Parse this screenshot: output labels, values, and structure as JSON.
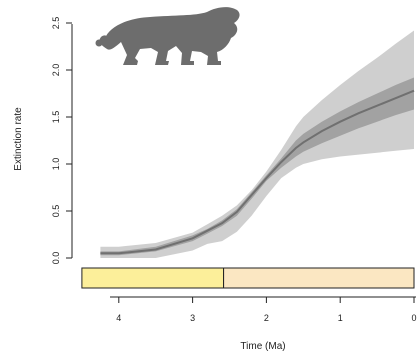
{
  "chart_data": {
    "type": "area",
    "title": "",
    "xlabel": "Time (Ma)",
    "ylabel": "Extinction rate",
    "xlim": [
      4.5,
      0
    ],
    "ylim": [
      0,
      2.5
    ],
    "x_ticks": [
      4,
      3,
      2,
      1,
      0
    ],
    "x_tick_labels": [
      "4",
      "3",
      "2",
      "1",
      "0"
    ],
    "y_ticks": [
      0,
      0.5,
      1,
      1.5,
      2,
      2.5
    ],
    "y_tick_labels": [
      "0.0",
      "0.5",
      "1.0",
      "1.5",
      "2.0",
      "2.5"
    ],
    "grid": false,
    "x": [
      4.25,
      4.0,
      3.5,
      3.0,
      2.8,
      2.6,
      2.4,
      2.2,
      2.0,
      1.8,
      1.6,
      1.5,
      1.25,
      1.0,
      0.75,
      0.5,
      0.25,
      0.0
    ],
    "series": [
      {
        "role": "outer_band_upper",
        "values": [
          0.12,
          0.12,
          0.16,
          0.27,
          0.36,
          0.45,
          0.56,
          0.72,
          0.92,
          1.15,
          1.4,
          1.5,
          1.68,
          1.84,
          1.99,
          2.13,
          2.28,
          2.42
        ]
      },
      {
        "role": "outer_band_lower",
        "values": [
          0.0,
          0.0,
          0.0,
          0.08,
          0.15,
          0.18,
          0.28,
          0.45,
          0.66,
          0.85,
          0.96,
          1.0,
          1.05,
          1.08,
          1.1,
          1.12,
          1.14,
          1.16
        ]
      },
      {
        "role": "inner_band_upper",
        "values": [
          0.07,
          0.07,
          0.12,
          0.24,
          0.31,
          0.4,
          0.52,
          0.7,
          0.88,
          1.06,
          1.25,
          1.32,
          1.45,
          1.56,
          1.66,
          1.75,
          1.84,
          1.92
        ]
      },
      {
        "role": "inner_band_lower",
        "values": [
          0.03,
          0.03,
          0.07,
          0.18,
          0.26,
          0.34,
          0.45,
          0.63,
          0.82,
          0.96,
          1.08,
          1.13,
          1.22,
          1.3,
          1.38,
          1.45,
          1.52,
          1.58
        ]
      },
      {
        "role": "median",
        "values": [
          0.05,
          0.05,
          0.09,
          0.21,
          0.29,
          0.37,
          0.49,
          0.67,
          0.85,
          1.02,
          1.17,
          1.23,
          1.35,
          1.45,
          1.54,
          1.62,
          1.7,
          1.78
        ]
      }
    ],
    "timescale": {
      "boundaries": [
        4.5,
        2.58,
        0
      ],
      "segments": [
        {
          "from": 4.5,
          "to": 2.58,
          "color": "#fcef9a"
        },
        {
          "from": 2.58,
          "to": 0,
          "color": "#fbe7c2"
        }
      ]
    },
    "colors": {
      "outer_band": "#cfcfcf",
      "inner_band": "#9a9a9a",
      "median": "#707070",
      "silhouette": "#6d6d6d"
    },
    "silhouette": "lion"
  }
}
